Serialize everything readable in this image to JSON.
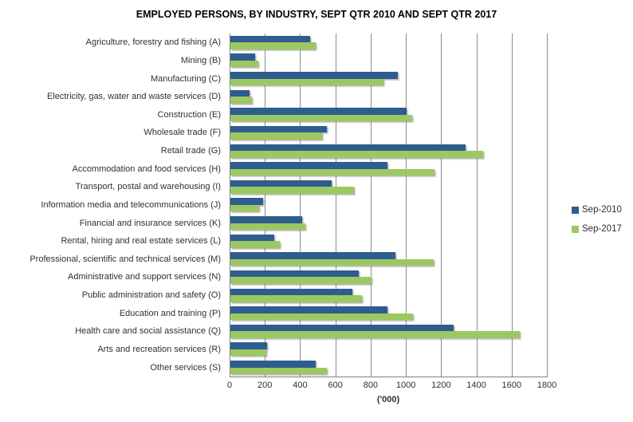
{
  "chart_data": {
    "type": "bar",
    "orientation": "horizontal",
    "title": "EMPLOYED PERSONS, BY INDUSTRY, SEPT QTR 2010 AND SEPT QTR 2017",
    "xlabel": "('000)",
    "xlim": [
      0,
      1800
    ],
    "x_ticks": [
      0,
      200,
      400,
      600,
      800,
      1000,
      1200,
      1400,
      1600,
      1800
    ],
    "grid": true,
    "legend_position": "right",
    "categories": [
      "Agriculture, forestry and fishing (A)",
      "Mining (B)",
      "Manufacturing (C)",
      "Electricity, gas, water and waste services (D)",
      "Construction (E)",
      "Wholesale trade (F)",
      "Retail trade (G)",
      "Accommodation and food services (H)",
      "Transport, postal and warehousing (I)",
      "Information media and telecommunications (J)",
      "Financial and insurance services (K)",
      "Rental, hiring and real estate services (L)",
      "Professional, scientific and technical services (M)",
      "Administrative and support services (N)",
      "Public administration and safety (O)",
      "Education and training (P)",
      "Health care and social assistance (Q)",
      "Arts and recreation services (R)",
      "Other services (S)"
    ],
    "series": [
      {
        "name": "Sep-2010",
        "color": "#2E5D8E",
        "values": [
          450,
          140,
          950,
          110,
          1000,
          545,
          1335,
          890,
          575,
          185,
          405,
          250,
          935,
          730,
          690,
          890,
          1265,
          210,
          485
        ]
      },
      {
        "name": "Sep-2017",
        "color": "#9CC862",
        "values": [
          485,
          160,
          870,
          120,
          1030,
          520,
          1435,
          1160,
          700,
          165,
          425,
          280,
          1155,
          800,
          745,
          1035,
          1640,
          205,
          545
        ]
      }
    ],
    "axis_color": "#808080",
    "gridline_color": "#8E8E8E",
    "text_color": "#303030"
  }
}
